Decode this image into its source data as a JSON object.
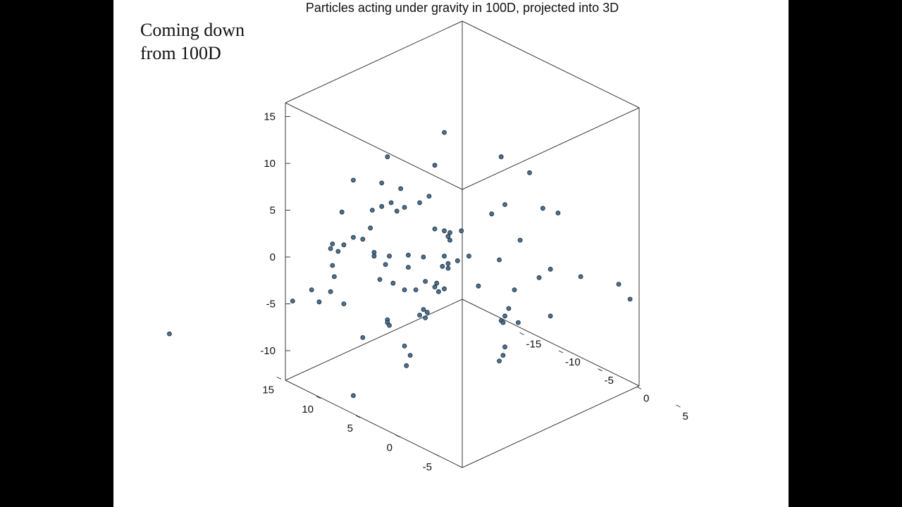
{
  "caption": {
    "line1": "Coming down",
    "line2": "from 100D"
  },
  "chart_data": {
    "type": "scatter",
    "projection": "3d",
    "title": "Particles acting under gravity in 100D, projected into 3D",
    "z_ticks": [
      15,
      10,
      5,
      0,
      -5,
      -10
    ],
    "x_ticks": [
      15,
      10,
      5,
      0,
      -5
    ],
    "y_ticks": [
      5,
      0,
      -5,
      -10,
      -15
    ],
    "points_projected": [
      [
        -8.2,
        -8.2
      ],
      [
        6.3,
        13.3
      ],
      [
        3.3,
        10.7
      ],
      [
        9.3,
        10.7
      ],
      [
        5.8,
        9.8
      ],
      [
        10.8,
        9.0
      ],
      [
        1.5,
        8.2
      ],
      [
        3.0,
        7.9
      ],
      [
        4.0,
        7.3
      ],
      [
        5.5,
        6.5
      ],
      [
        3.5,
        5.8
      ],
      [
        5.0,
        5.8
      ],
      [
        3.0,
        5.4
      ],
      [
        4.2,
        5.3
      ],
      [
        2.5,
        5.0
      ],
      [
        3.8,
        4.9
      ],
      [
        0.9,
        4.8
      ],
      [
        8.8,
        4.6
      ],
      [
        9.5,
        5.6
      ],
      [
        11.5,
        5.2
      ],
      [
        12.3,
        4.7
      ],
      [
        2.4,
        3.1
      ],
      [
        1.5,
        2.1
      ],
      [
        2.0,
        1.9
      ],
      [
        0.4,
        1.4
      ],
      [
        1.0,
        1.3
      ],
      [
        5.8,
        3.0
      ],
      [
        6.3,
        2.8
      ],
      [
        7.2,
        2.8
      ],
      [
        6.6,
        2.6
      ],
      [
        6.5,
        2.2
      ],
      [
        6.6,
        1.8
      ],
      [
        10.3,
        1.8
      ],
      [
        0.3,
        0.9
      ],
      [
        0.7,
        0.6
      ],
      [
        2.6,
        0.5
      ],
      [
        2.6,
        0.1
      ],
      [
        3.4,
        0.1
      ],
      [
        4.4,
        0.2
      ],
      [
        6.3,
        0.1
      ],
      [
        7.6,
        0.1
      ],
      [
        5.2,
        0.0
      ],
      [
        7.0,
        -0.4
      ],
      [
        9.2,
        -0.3
      ],
      [
        0.4,
        -0.9
      ],
      [
        3.2,
        -0.8
      ],
      [
        4.4,
        -1.1
      ],
      [
        6.2,
        -1.0
      ],
      [
        6.5,
        -0.7
      ],
      [
        6.5,
        -1.2
      ],
      [
        11.9,
        -1.3
      ],
      [
        13.5,
        -2.1
      ],
      [
        11.3,
        -2.2
      ],
      [
        0.5,
        -2.1
      ],
      [
        2.9,
        -2.4
      ],
      [
        3.6,
        -2.8
      ],
      [
        5.3,
        -2.6
      ],
      [
        5.9,
        -2.8
      ],
      [
        5.8,
        -3.2
      ],
      [
        4.2,
        -3.5
      ],
      [
        4.8,
        -3.5
      ],
      [
        6.3,
        -3.4
      ],
      [
        6.0,
        -3.7
      ],
      [
        8.1,
        -3.1
      ],
      [
        10.0,
        -3.5
      ],
      [
        15.5,
        -2.9
      ],
      [
        16.1,
        -4.5
      ],
      [
        -0.7,
        -3.5
      ],
      [
        0.3,
        -3.7
      ],
      [
        -0.3,
        -4.8
      ],
      [
        1.0,
        -5.0
      ],
      [
        -1.7,
        -4.7
      ],
      [
        5.2,
        -5.6
      ],
      [
        5.4,
        -5.9
      ],
      [
        9.7,
        -5.5
      ],
      [
        5.0,
        -6.2
      ],
      [
        5.3,
        -6.5
      ],
      [
        9.5,
        -6.3
      ],
      [
        10.2,
        -7.0
      ],
      [
        9.3,
        -6.8
      ],
      [
        9.4,
        -7.0
      ],
      [
        11.9,
        -6.3
      ],
      [
        3.3,
        -6.7
      ],
      [
        3.3,
        -7.0
      ],
      [
        3.4,
        -7.3
      ],
      [
        2.0,
        -8.6
      ],
      [
        4.2,
        -9.5
      ],
      [
        4.5,
        -10.5
      ],
      [
        4.3,
        -11.6
      ],
      [
        9.5,
        -9.6
      ],
      [
        9.4,
        -10.5
      ],
      [
        9.2,
        -11.1
      ],
      [
        1.5,
        -14.8
      ]
    ]
  }
}
